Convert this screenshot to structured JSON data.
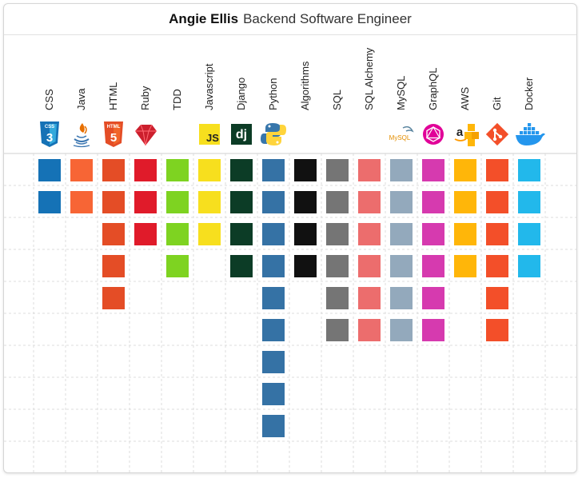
{
  "header": {
    "name": "Angie Ellis",
    "role": "Backend Software Engineer"
  },
  "icons": [
    "css3-icon",
    "java-icon",
    "html5-icon",
    "ruby-icon",
    "none",
    "javascript-icon",
    "django-icon",
    "python-icon",
    "none",
    "none",
    "none",
    "mysql-icon",
    "graphql-icon",
    "aws-icon",
    "git-icon",
    "docker-icon"
  ],
  "icon_text": {
    "css": "CSS",
    "html": "HTML",
    "js": "JS",
    "dj": "dj",
    "mysql": "MySQL"
  },
  "chart_data": {
    "type": "table",
    "categories": [
      "CSS",
      "Java",
      "HTML",
      "Ruby",
      "TDD",
      "Javascript",
      "Django",
      "Python",
      "Algorithms",
      "SQL",
      "SQL Alchemy",
      "MySQL",
      "GraphQL",
      "AWS",
      "Git",
      "Docker"
    ],
    "values": [
      2,
      2,
      5,
      3,
      4,
      3,
      4,
      9,
      4,
      6,
      6,
      6,
      6,
      4,
      6,
      4
    ],
    "max_rows": 10,
    "colors": [
      "#1572b6",
      "#f76535",
      "#e44d26",
      "#e01b2a",
      "#7ed321",
      "#f7df1e",
      "#0c3c26",
      "#3572a5",
      "#111111",
      "#757575",
      "#ec6d6d",
      "#93a9bc",
      "#d63aaf",
      "#ffb609",
      "#f34f29",
      "#22b8eb"
    ]
  }
}
